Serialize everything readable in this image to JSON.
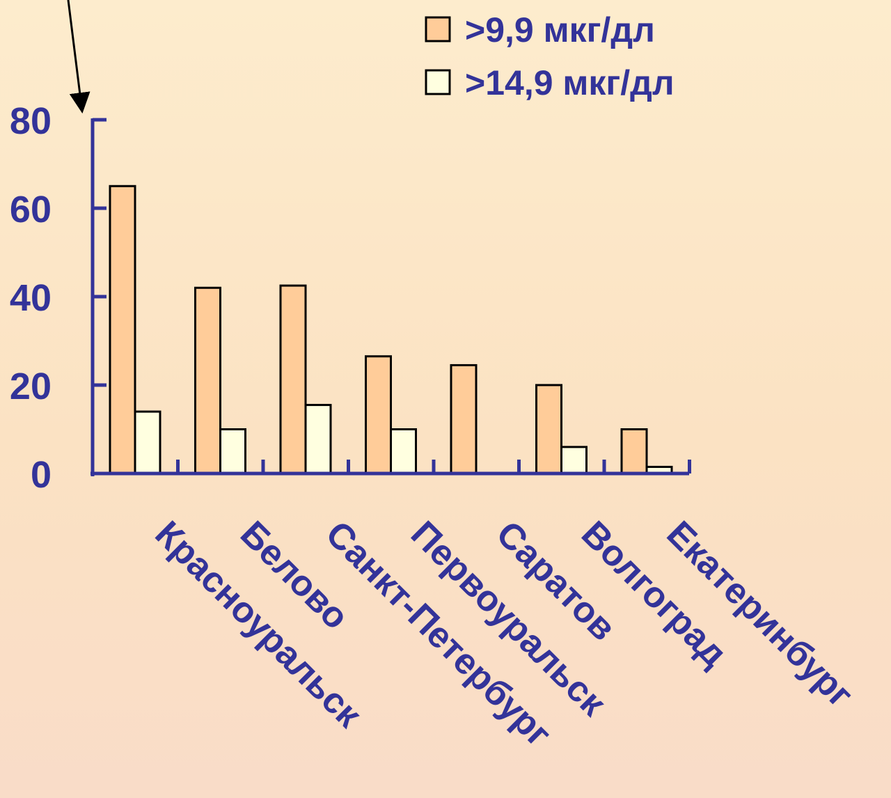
{
  "colors": {
    "axis": "#333399",
    "series1": "#ffcc99",
    "series2": "#ffffe0",
    "bar_border": "#000000"
  },
  "chart_data": {
    "type": "bar",
    "categories": [
      "Красноуральск",
      "Белово",
      "Санкт-Петербург",
      "Первоуральск",
      "Саратов",
      "Волгоград",
      "Екатеринбург"
    ],
    "series": [
      {
        "name": ">9,9 мкг/дл",
        "values": [
          65,
          42,
          42.5,
          26.5,
          24.5,
          20,
          10
        ]
      },
      {
        "name": ">14,9 мкг/дл",
        "values": [
          14,
          10,
          15.5,
          10,
          0,
          6,
          1.5
        ]
      }
    ],
    "yticks": [
      0,
      20,
      40,
      60,
      80
    ],
    "ylim": [
      0,
      80
    ],
    "legend_position": "top-right",
    "grid": false
  }
}
